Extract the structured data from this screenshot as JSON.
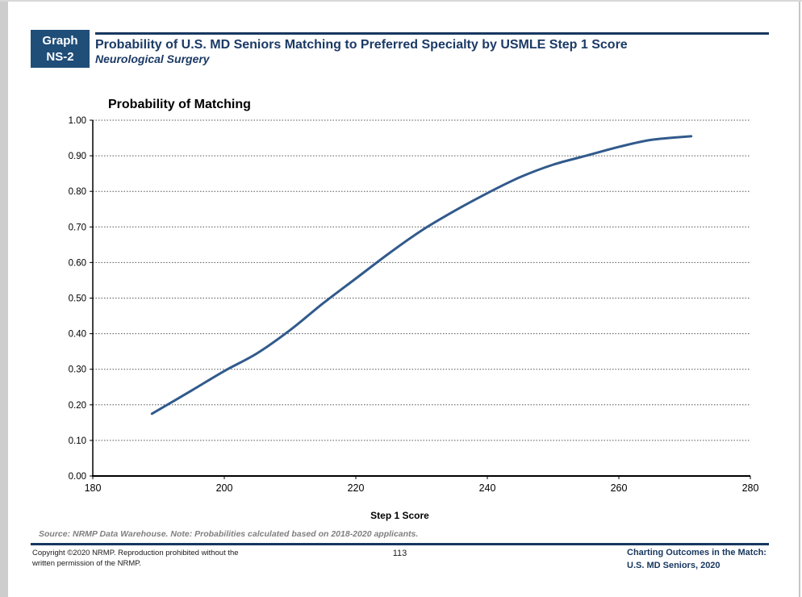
{
  "header": {
    "badge_line1": "Graph",
    "badge_line2": "NS-2",
    "title": "Probability of U.S. MD Seniors Matching to Preferred Specialty by USMLE Step 1 Score",
    "subtitle": "Neurological Surgery"
  },
  "source_note": "Source: NRMP Data Warehouse. Note: Probabilities calculated based on 2018-2020 applicants.",
  "footer": {
    "copyright_line1": "Copyright ©2020 NRMP. Reproduction prohibited without the",
    "copyright_line2": "written permission of the NRMP.",
    "page_number": "113",
    "publication_line1": "Charting Outcomes in the Match:",
    "publication_line2": "U.S. MD Seniors, 2020"
  },
  "colors": {
    "navy": "#17375E",
    "box_navy": "#1F4E79",
    "title_navy": "#1B3A66",
    "curve_blue": "#315A8C",
    "grid_gray": "#555555",
    "axis_black": "#000000",
    "source_gray": "#7F7F7F"
  },
  "chart_data": {
    "type": "line",
    "title": "Probability of Matching",
    "xlabel": "Step 1 Score",
    "ylabel": "Probability of Matching",
    "xlim": [
      180,
      280
    ],
    "ylim": [
      0.0,
      1.0
    ],
    "x_ticks": [
      180,
      200,
      220,
      240,
      260,
      280
    ],
    "y_ticks": [
      0.0,
      0.1,
      0.2,
      0.3,
      0.4,
      0.5,
      0.6,
      0.7,
      0.8,
      0.9,
      1.0
    ],
    "grid": "horizontal dotted gridlines at each 0.10",
    "legend": "none",
    "series": [
      {
        "name": "Probability of matching — Neurological Surgery",
        "x": [
          189,
          195,
          200,
          205,
          210,
          215,
          220,
          225,
          230,
          235,
          240,
          245,
          250,
          255,
          260,
          265,
          271
        ],
        "y": [
          0.175,
          0.24,
          0.295,
          0.345,
          0.41,
          0.485,
          0.555,
          0.625,
          0.69,
          0.745,
          0.795,
          0.84,
          0.875,
          0.9,
          0.925,
          0.945,
          0.955
        ]
      }
    ]
  }
}
